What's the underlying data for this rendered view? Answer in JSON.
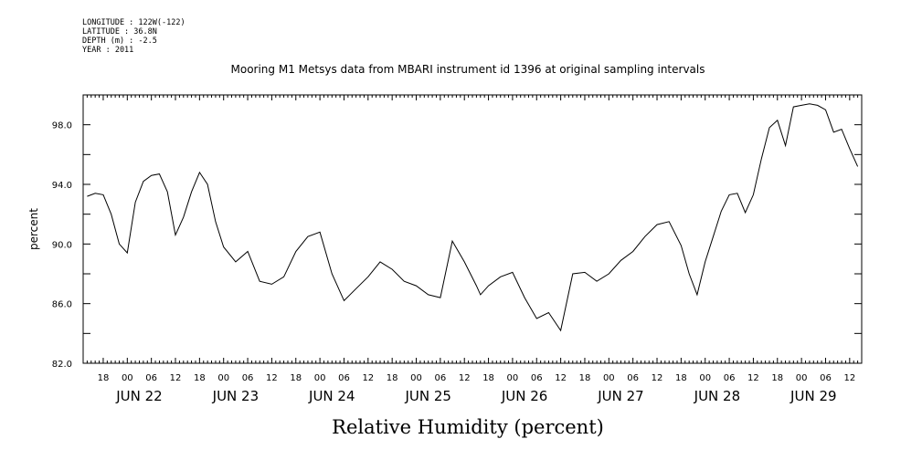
{
  "meta": {
    "longitude": "LONGITUDE : 122W(-122)",
    "latitude": "LATITUDE : 36.8N",
    "depth": "DEPTH (m) : -2.5",
    "year": "YEAR : 2011"
  },
  "chart_data": {
    "type": "line",
    "title": "Mooring M1 Metsys data from MBARI instrument id 1396 at original sampling intervals",
    "xlabel": "Relative Humidity (percent)",
    "ylabel": "percent",
    "ylim": [
      82,
      100
    ],
    "xlim": [
      "2011-06-21T13:00",
      "2011-06-29T15:00"
    ],
    "y_ticks": [
      "82.0",
      "86.0",
      "90.0",
      "94.0",
      "98.0"
    ],
    "x_hour_ticks": [
      "18",
      "00",
      "06",
      "12",
      "18",
      "00",
      "06",
      "12",
      "18",
      "00",
      "06",
      "12",
      "18",
      "00",
      "06",
      "12",
      "18",
      "00",
      "06",
      "12",
      "18",
      "00",
      "06",
      "12",
      "18",
      "00",
      "06",
      "12",
      "18",
      "00",
      "06",
      "12"
    ],
    "x_day_labels": [
      "JUN 22",
      "JUN 23",
      "JUN 24",
      "JUN 25",
      "JUN 26",
      "JUN 27",
      "JUN 28",
      "JUN 29"
    ],
    "grid": false,
    "series": [
      {
        "x": [
          "2011-06-21T14:00",
          "2011-06-21T16:00",
          "2011-06-21T18:00",
          "2011-06-21T20:00",
          "2011-06-21T22:00",
          "2011-06-22T00:00",
          "2011-06-22T02:00",
          "2011-06-22T04:00",
          "2011-06-22T06:00",
          "2011-06-22T08:00",
          "2011-06-22T10:00",
          "2011-06-22T12:00",
          "2011-06-22T14:00",
          "2011-06-22T16:00",
          "2011-06-22T18:00",
          "2011-06-22T20:00",
          "2011-06-22T22:00",
          "2011-06-23T00:00",
          "2011-06-23T03:00",
          "2011-06-23T06:00",
          "2011-06-23T09:00",
          "2011-06-23T12:00",
          "2011-06-23T15:00",
          "2011-06-23T18:00",
          "2011-06-23T21:00",
          "2011-06-24T00:00",
          "2011-06-24T03:00",
          "2011-06-24T06:00",
          "2011-06-24T09:00",
          "2011-06-24T12:00",
          "2011-06-24T15:00",
          "2011-06-24T18:00",
          "2011-06-24T21:00",
          "2011-06-25T00:00",
          "2011-06-25T03:00",
          "2011-06-25T06:00",
          "2011-06-25T09:00",
          "2011-06-25T12:00",
          "2011-06-25T15:00",
          "2011-06-25T16:00",
          "2011-06-25T18:00",
          "2011-06-25T21:00",
          "2011-06-26T00:00",
          "2011-06-26T03:00",
          "2011-06-26T06:00",
          "2011-06-26T09:00",
          "2011-06-26T12:00",
          "2011-06-26T15:00",
          "2011-06-26T18:00",
          "2011-06-26T21:00",
          "2011-06-27T00:00",
          "2011-06-27T03:00",
          "2011-06-27T06:00",
          "2011-06-27T09:00",
          "2011-06-27T12:00",
          "2011-06-27T15:00",
          "2011-06-27T18:00",
          "2011-06-27T20:00",
          "2011-06-27T22:00",
          "2011-06-28T00:00",
          "2011-06-28T02:00",
          "2011-06-28T04:00",
          "2011-06-28T06:00",
          "2011-06-28T08:00",
          "2011-06-28T10:00",
          "2011-06-28T12:00",
          "2011-06-28T14:00",
          "2011-06-28T16:00",
          "2011-06-28T18:00",
          "2011-06-28T20:00",
          "2011-06-28T22:00",
          "2011-06-29T00:00",
          "2011-06-29T02:00",
          "2011-06-29T04:00",
          "2011-06-29T06:00",
          "2011-06-29T08:00",
          "2011-06-29T10:00",
          "2011-06-29T12:00",
          "2011-06-29T14:00"
        ],
        "y": [
          93.2,
          93.4,
          93.3,
          92.0,
          90.0,
          89.4,
          92.8,
          94.2,
          94.6,
          94.7,
          93.5,
          90.6,
          91.8,
          93.5,
          94.8,
          94.0,
          91.5,
          89.8,
          88.8,
          89.5,
          87.5,
          87.3,
          87.8,
          89.5,
          90.5,
          90.8,
          88.0,
          86.2,
          87.0,
          87.8,
          88.8,
          88.3,
          87.5,
          87.2,
          86.6,
          86.4,
          90.2,
          88.8,
          87.2,
          86.6,
          87.2,
          87.8,
          88.1,
          86.4,
          85.0,
          85.4,
          84.2,
          88.0,
          88.1,
          87.5,
          88.0,
          88.9,
          89.5,
          90.5,
          91.3,
          91.5,
          89.9,
          88.0,
          86.6,
          88.8,
          90.5,
          92.2,
          93.3,
          93.4,
          92.1,
          93.3,
          95.7,
          97.8,
          98.3,
          96.6,
          99.2,
          99.3,
          99.4,
          99.3,
          99.0,
          97.5,
          97.7,
          96.4,
          95.2
        ]
      }
    ]
  }
}
